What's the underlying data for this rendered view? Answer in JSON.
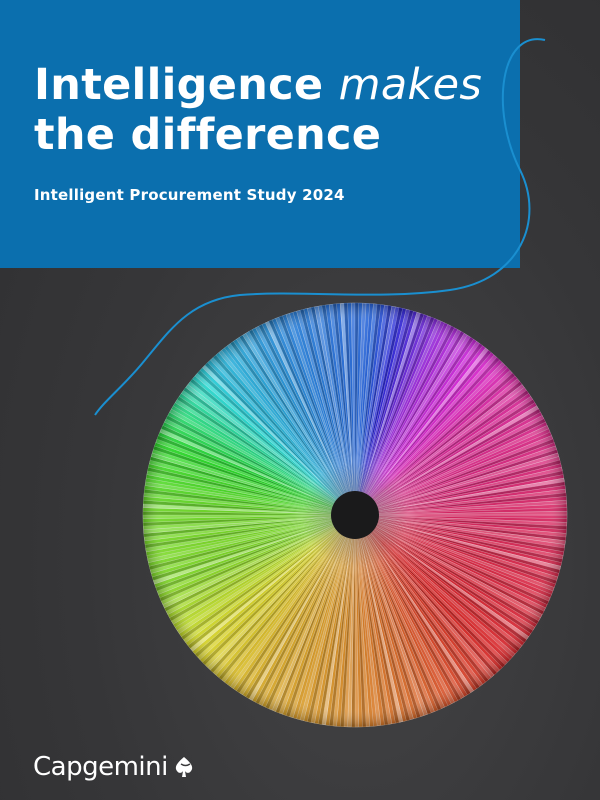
{
  "cover": {
    "title_line1_part1": "Intelligence",
    "title_line1_part2": "makes",
    "title_line2": "the difference",
    "subtitle": "Intelligent Procurement Study 2024",
    "logo_text": "Capgemini",
    "colors": {
      "panel_blue": "#0b6fae",
      "background": "#3a3a3c",
      "accent_curve": "#1a8fd0"
    }
  }
}
